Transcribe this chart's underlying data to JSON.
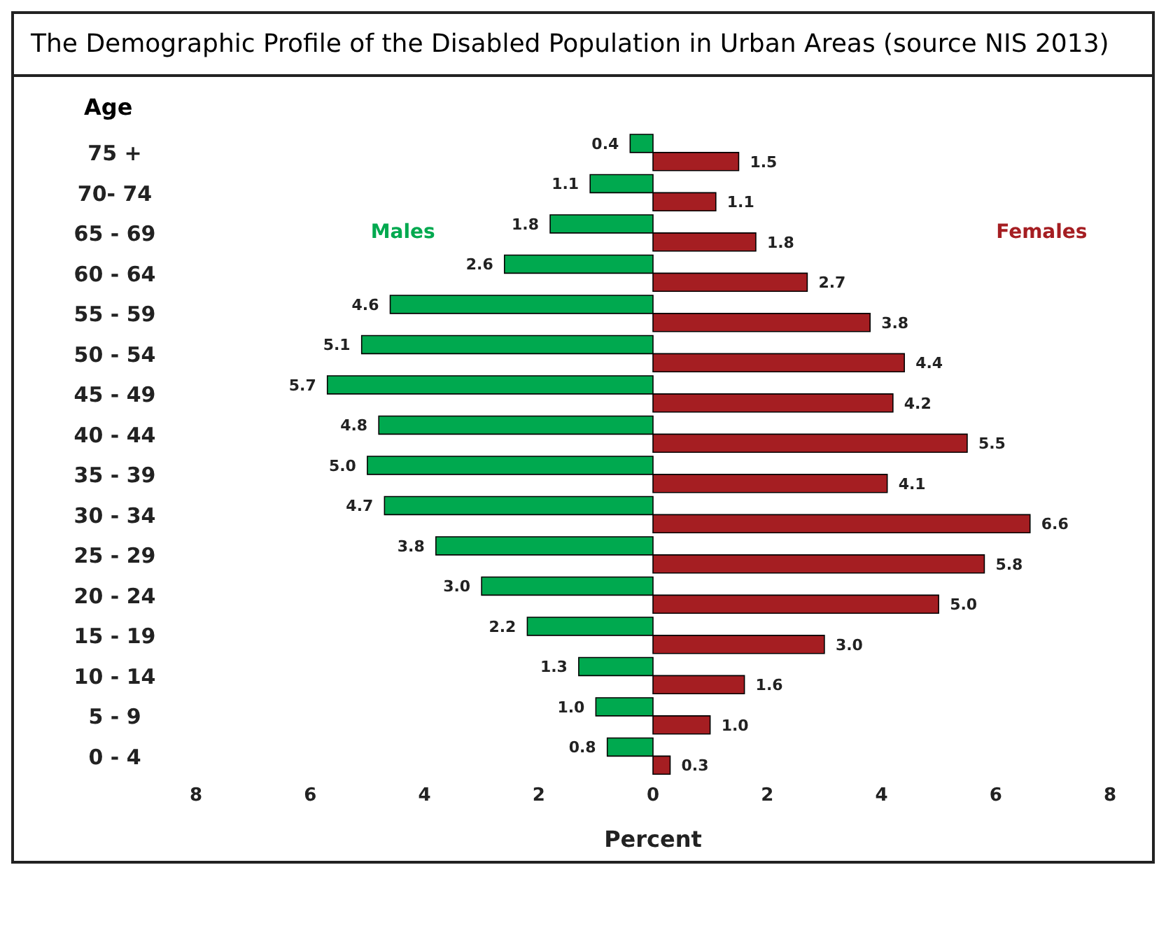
{
  "chart_data": {
    "type": "bar",
    "orientation": "horizontal",
    "title": "The Demographic Profile of the Disabled Population in Urban Areas (source NIS 2013)",
    "xlabel": "Percent",
    "ylabel": "Age",
    "categories": [
      "75 +",
      "70- 74",
      "65 - 69",
      "60 - 64",
      "55 - 59",
      "50 - 54",
      "45 - 49",
      "40 - 44",
      "35 - 39",
      "30 - 34",
      "25 - 29",
      "20 - 24",
      "15 - 19",
      "10 - 14",
      "5 - 9",
      "0 - 4"
    ],
    "series": [
      {
        "name": "Males",
        "color": "#00a94f",
        "values": [
          0.4,
          1.1,
          1.8,
          2.6,
          4.6,
          5.1,
          5.7,
          4.8,
          5.0,
          4.7,
          3.8,
          3.0,
          2.2,
          1.3,
          1.0,
          0.8
        ],
        "base": [
          -0.4,
          -1.1,
          -1.8,
          -2.6,
          -4.6,
          -5.1,
          -5.7,
          -4.8,
          -5.0,
          -4.7,
          -3.8,
          -3.0,
          -2.2,
          -1.3,
          -1.0,
          -0.8
        ],
        "value_labels": [
          "0.4",
          "1.1",
          "1.8",
          "2.6",
          "4.6",
          "5.1",
          "5.7",
          "4.8",
          "5.0",
          "4.7",
          "3.8",
          "3.0",
          "2.2",
          "1.3",
          "1.0",
          "0.8"
        ]
      },
      {
        "name": "Females",
        "color": "#a51e22",
        "values": [
          1.5,
          1.1,
          1.8,
          2.7,
          3.8,
          4.4,
          4.2,
          5.5,
          4.1,
          6.6,
          5.8,
          5.0,
          3.0,
          1.6,
          1.0,
          0.3
        ],
        "value_labels": [
          "1.5",
          "1.1",
          "1.8",
          "2.7",
          "3.8",
          "4.4",
          "4.2",
          "5.5",
          "4.1",
          "6.6",
          "5.8",
          "5.0",
          "3.0",
          "1.6",
          "1.0",
          "0.3"
        ]
      }
    ],
    "xlim": [
      -8,
      8
    ],
    "xticks": [
      {
        "value": -8,
        "label": "8"
      },
      {
        "value": -6,
        "label": "6"
      },
      {
        "value": -4,
        "label": "4"
      },
      {
        "value": -2,
        "label": "2"
      },
      0,
      2,
      4,
      6,
      8
    ],
    "grid": false,
    "legend": false
  }
}
